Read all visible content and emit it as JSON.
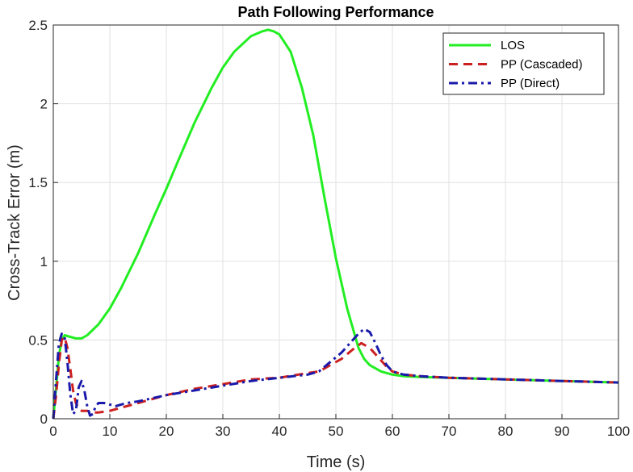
{
  "chart_data": {
    "type": "line",
    "title": "Path Following Performance",
    "xlabel": "Time (s)",
    "ylabel": "Cross-Track Error (m)",
    "xlim": [
      0,
      100
    ],
    "ylim": [
      0,
      2.5
    ],
    "xticks": [
      0,
      10,
      20,
      30,
      40,
      50,
      60,
      70,
      80,
      90,
      100
    ],
    "yticks": [
      0,
      0.5,
      1,
      1.5,
      2,
      2.5
    ],
    "xtick_labels": [
      "0",
      "10",
      "20",
      "30",
      "40",
      "50",
      "60",
      "70",
      "80",
      "90",
      "100"
    ],
    "ytick_labels": [
      "0",
      "0.5",
      "1",
      "1.5",
      "2",
      "2.5"
    ],
    "grid": true,
    "legend_position": "top-right",
    "series": [
      {
        "name": "LOS",
        "color": "#22ee22",
        "style": "solid",
        "x": [
          0,
          0.5,
          1,
          1.5,
          2,
          3,
          4,
          5,
          6,
          8,
          10,
          12,
          15,
          18,
          20,
          22,
          25,
          28,
          30,
          32,
          35,
          37,
          38,
          39,
          40,
          42,
          44,
          46,
          48,
          50,
          52,
          54,
          55,
          56,
          58,
          60,
          62,
          65,
          70,
          80,
          90,
          100
        ],
        "y": [
          0,
          0.2,
          0.4,
          0.5,
          0.53,
          0.52,
          0.51,
          0.51,
          0.53,
          0.6,
          0.7,
          0.83,
          1.05,
          1.3,
          1.46,
          1.63,
          1.88,
          2.1,
          2.23,
          2.33,
          2.43,
          2.46,
          2.47,
          2.46,
          2.44,
          2.33,
          2.1,
          1.8,
          1.4,
          1.02,
          0.7,
          0.45,
          0.38,
          0.34,
          0.3,
          0.28,
          0.27,
          0.265,
          0.26,
          0.25,
          0.24,
          0.23
        ]
      },
      {
        "name": "PP (Cascaded)",
        "color": "#cc2020",
        "style": "dashed",
        "x": [
          0,
          0.5,
          1,
          1.5,
          2,
          2.5,
          3,
          3.5,
          4,
          4.5,
          5,
          6,
          7,
          8,
          10,
          12,
          15,
          20,
          25,
          30,
          35,
          40,
          45,
          47,
          49,
          51,
          53,
          54.5,
          56,
          57,
          58,
          59,
          60,
          62,
          65,
          70,
          80,
          90,
          100
        ],
        "y": [
          0,
          0.15,
          0.35,
          0.5,
          0.52,
          0.45,
          0.32,
          0.18,
          0.1,
          0.06,
          0.05,
          0.05,
          0.04,
          0.04,
          0.05,
          0.07,
          0.1,
          0.15,
          0.19,
          0.22,
          0.25,
          0.26,
          0.29,
          0.3,
          0.34,
          0.38,
          0.44,
          0.48,
          0.45,
          0.41,
          0.37,
          0.33,
          0.3,
          0.28,
          0.27,
          0.26,
          0.25,
          0.24,
          0.23
        ]
      },
      {
        "name": "PP (Direct)",
        "color": "#1a1aaa",
        "style": "dashdot",
        "x": [
          0,
          0.5,
          1,
          1.5,
          2,
          2.5,
          3,
          3.5,
          4,
          4.5,
          5,
          5.5,
          6,
          6.5,
          7,
          7.5,
          8,
          9,
          10,
          11,
          12,
          13,
          15,
          20,
          25,
          30,
          35,
          40,
          45,
          47,
          49,
          51,
          53,
          54,
          55,
          56,
          57,
          58,
          59,
          60,
          62,
          65,
          70,
          80,
          90,
          100
        ],
        "y": [
          0,
          0.25,
          0.48,
          0.54,
          0.52,
          0.36,
          0.16,
          0.03,
          0.05,
          0.2,
          0.24,
          0.18,
          0.08,
          0.02,
          0.03,
          0.08,
          0.1,
          0.1,
          0.09,
          0.08,
          0.09,
          0.1,
          0.11,
          0.15,
          0.18,
          0.21,
          0.24,
          0.26,
          0.28,
          0.3,
          0.36,
          0.42,
          0.5,
          0.54,
          0.57,
          0.55,
          0.48,
          0.4,
          0.34,
          0.3,
          0.28,
          0.27,
          0.26,
          0.25,
          0.24,
          0.23
        ]
      }
    ]
  }
}
